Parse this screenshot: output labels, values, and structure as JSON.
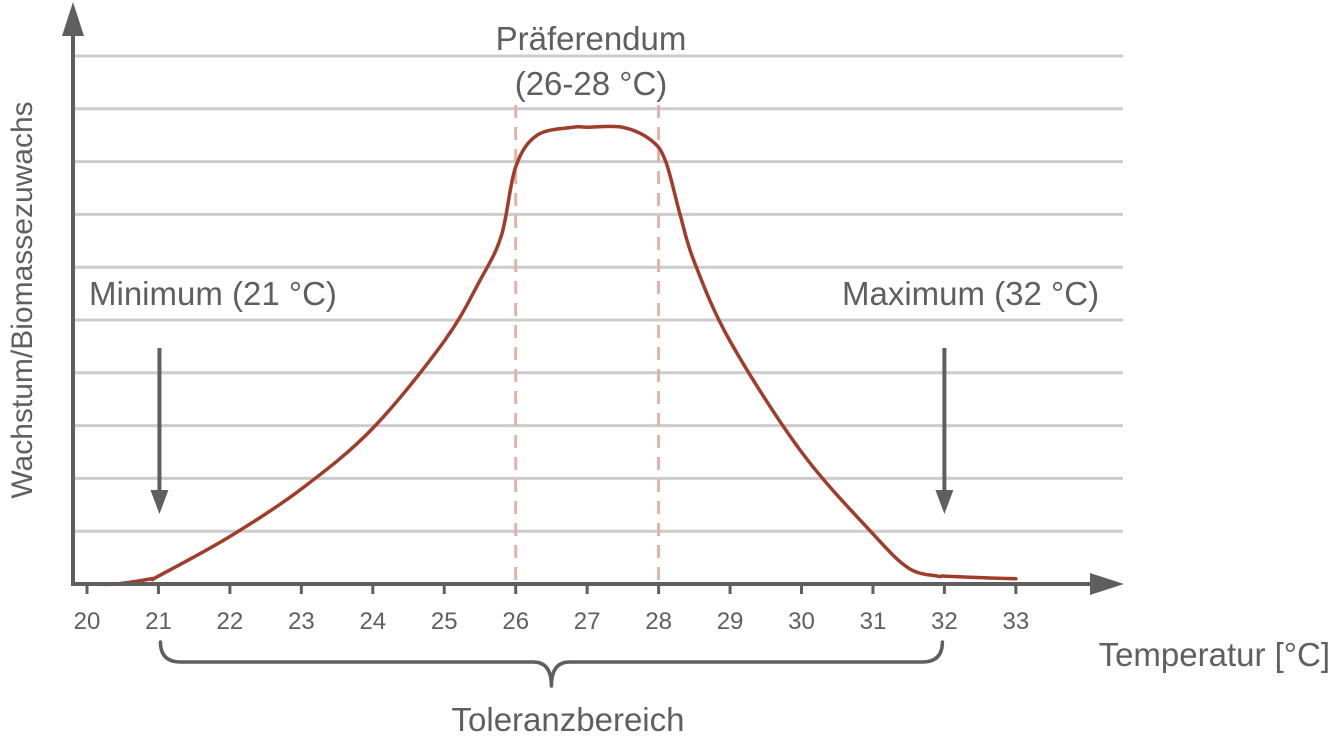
{
  "chart_data": {
    "type": "line",
    "title": "",
    "xlabel": "Temperatur [°C]",
    "ylabel": "Wachstum/Biomassezuwachs",
    "x_ticks": [
      "20",
      "21",
      "22",
      "23",
      "24",
      "25",
      "26",
      "27",
      "28",
      "29",
      "30",
      "31",
      "32",
      "33"
    ],
    "xlim": [
      20,
      33
    ],
    "ylim": [
      0,
      10
    ],
    "grid": true,
    "series": [
      {
        "color": "#a03c2a",
        "x": [
          20,
          20.4,
          20.9,
          21,
          22,
          23,
          24,
          25,
          25.5,
          25.8,
          26,
          26.3,
          26.8,
          27,
          27.5,
          27.9,
          28.1,
          28.3,
          28.5,
          29,
          30,
          31,
          31.5,
          31.9,
          32,
          32.5,
          33
        ],
        "y": [
          0,
          0.0,
          0.1,
          0.15,
          0.9,
          1.8,
          2.95,
          4.6,
          5.75,
          6.6,
          7.9,
          8.5,
          8.65,
          8.65,
          8.65,
          8.4,
          8.0,
          7.0,
          6.1,
          4.6,
          2.5,
          0.95,
          0.3,
          0.15,
          0.15,
          0.12,
          0.1
        ]
      }
    ],
    "annotations": {
      "min_label": "Minimum (21 °C)",
      "max_label": "Maximum (32 °C)",
      "pref_line1": "Präferendum",
      "pref_line2": "(26-28 °C)",
      "tolerance_label": "Toleranzbereich"
    },
    "markers": {
      "min_x": 21,
      "max_x": 32,
      "pref_range": [
        26,
        28
      ],
      "tolerance_range": [
        21,
        32
      ]
    },
    "colors": {
      "axis": "#5f5f5f",
      "grid": "#cccccc",
      "curve": "#a03c2a",
      "dashed": "#e0b4a8",
      "text": "#5f5f5f"
    }
  }
}
